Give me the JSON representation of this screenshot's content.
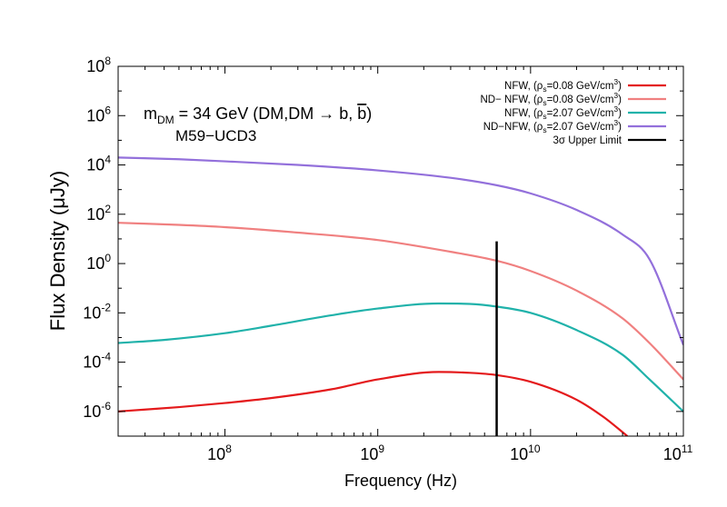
{
  "chart_data": {
    "type": "line",
    "title": "",
    "xlabel": "Frequency (Hz)",
    "ylabel": "Flux Density (μJy)",
    "xscale": "log",
    "yscale": "log",
    "xlim": [
      20000000.0,
      100000000000.0
    ],
    "ylim": [
      1e-07,
      100000000.0
    ],
    "x_ticks": [
      {
        "value": 100000000.0,
        "base": "10",
        "exp": "8"
      },
      {
        "value": 1000000000.0,
        "base": "10",
        "exp": "9"
      },
      {
        "value": 10000000000.0,
        "base": "10",
        "exp": "10"
      },
      {
        "value": 100000000000.0,
        "base": "10",
        "exp": "11"
      }
    ],
    "y_ticks": [
      {
        "value": 1e-06,
        "base": "10",
        "exp": "-6"
      },
      {
        "value": 0.0001,
        "base": "10",
        "exp": "-4"
      },
      {
        "value": 0.01,
        "base": "10",
        "exp": "-2"
      },
      {
        "value": 1.0,
        "base": "10",
        "exp": "0"
      },
      {
        "value": 100.0,
        "base": "10",
        "exp": "2"
      },
      {
        "value": 10000.0,
        "base": "10",
        "exp": "4"
      },
      {
        "value": 1000000.0,
        "base": "10",
        "exp": "6"
      },
      {
        "value": 100000000.0,
        "base": "10",
        "exp": "8"
      }
    ],
    "annotation": {
      "mass_symbol": "m",
      "mass_sub": "DM",
      "mass_text": " = 34 GeV (DM,DM → b,  ",
      "bbar": "b",
      "mass_close": ")",
      "target": "M59−UCD3"
    },
    "legend_position": "top-right",
    "series": [
      {
        "name": "NFW, (ρs=0.08 GeV/cm3)",
        "label_pre": "NFW, (ρ",
        "label_sub": "s",
        "label_mid": "=0.08 GeV/cm",
        "label_sup": "3",
        "label_post": ")",
        "color": "#e41a1c",
        "x": [
          20000000.0,
          30000000.0,
          50000000.0,
          100000000.0,
          200000000.0,
          500000000.0,
          1000000000.0,
          2500000000.0,
          4000000000.0,
          6000000000.0,
          10000000000.0,
          20000000000.0,
          30000000000.0,
          43000000000.0
        ],
        "y": [
          1e-06,
          1.2e-06,
          1.5e-06,
          2.2e-06,
          3.5e-06,
          8e-06,
          2e-05,
          4e-05,
          3.7e-05,
          3e-05,
          1.6e-05,
          3e-06,
          6e-07,
          1e-07
        ]
      },
      {
        "name": "ND− NFW, (ρs=0.08 GeV/cm3)",
        "label_pre": "ND− NFW, (ρ",
        "label_sub": "s",
        "label_mid": "=0.08 GeV/cm",
        "label_sup": "3",
        "label_post": ")",
        "color": "#f08080",
        "x": [
          20000000.0,
          50000000.0,
          100000000.0,
          300000000.0,
          1000000000.0,
          3000000000.0,
          6000000000.0,
          10000000000.0,
          20000000000.0,
          40000000000.0,
          60000000000.0,
          100000000000.0
        ],
        "y": [
          45,
          37,
          30,
          18,
          9,
          3,
          1.3,
          0.5,
          0.08,
          0.006,
          0.0006,
          2e-05
        ]
      },
      {
        "name": "NFW, (ρs=2.07 GeV/cm3)",
        "label_pre": "NFW, (ρ",
        "label_sub": "s",
        "label_mid": "=2.07 GeV/cm",
        "label_sup": "3",
        "label_post": ")",
        "color": "#20b2aa",
        "x": [
          20000000.0,
          40000000.0,
          100000000.0,
          200000000.0,
          500000000.0,
          1000000000.0,
          2500000000.0,
          4000000000.0,
          6000000000.0,
          10000000000.0,
          20000000000.0,
          40000000000.0,
          60000000000.0,
          100000000000.0
        ],
        "y": [
          0.0006,
          0.0008,
          0.0015,
          0.003,
          0.008,
          0.015,
          0.024,
          0.023,
          0.018,
          0.01,
          0.002,
          0.0002,
          2e-05,
          1e-06
        ]
      },
      {
        "name": "ND−NFW, (ρs=2.07 GeV/cm3)",
        "label_pre": "ND−NFW, (ρ",
        "label_sub": "s",
        "label_mid": "=2.07 GeV/cm",
        "label_sup": "3",
        "label_post": ")",
        "color": "#9370db",
        "x": [
          20000000.0,
          50000000.0,
          100000000.0,
          300000000.0,
          1000000000.0,
          3000000000.0,
          6000000000.0,
          10000000000.0,
          20000000000.0,
          40000000000.0,
          60000000000.0,
          100000000000.0
        ],
        "y": [
          20000,
          17000,
          14000,
          10000,
          6000,
          3000,
          1500,
          700,
          150,
          15,
          1.5,
          0.0005
        ]
      },
      {
        "name": "3σ Upper Limit",
        "label_pre": "3σ Upper Limit",
        "label_sub": "",
        "label_mid": "",
        "label_sup": "",
        "label_post": "",
        "color": "#000000",
        "x": [
          6000000000.0,
          6000000000.0
        ],
        "y": [
          1e-07,
          8
        ]
      }
    ]
  }
}
